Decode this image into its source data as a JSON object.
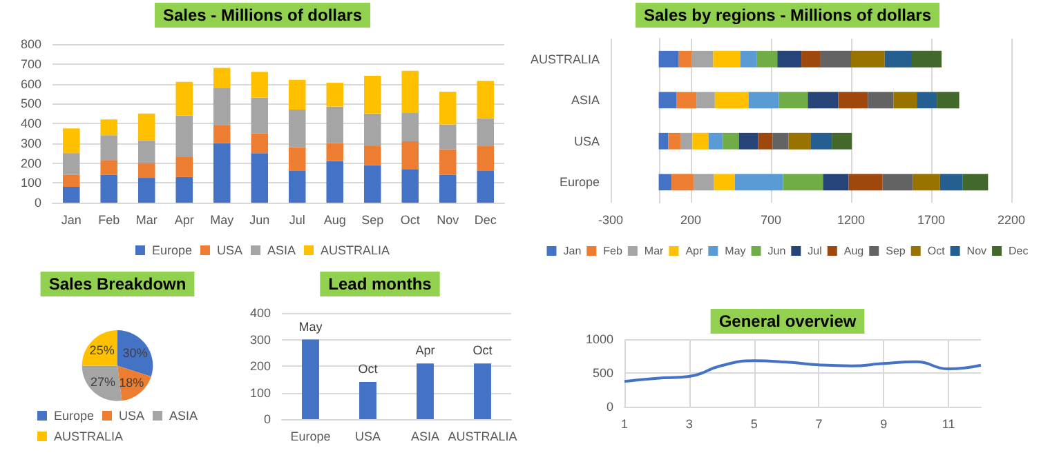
{
  "chart_data": [
    {
      "type": "bar",
      "title": "Sales - Millions of dollars",
      "categories": [
        "Jan",
        "Feb",
        "Mar",
        "Apr",
        "May",
        "Jun",
        "Jul",
        "Aug",
        "Sep",
        "Oct",
        "Nov",
        "Dec"
      ],
      "series": [
        {
          "name": "Europe",
          "color": "#4472c4",
          "values": [
            80,
            140,
            125,
            130,
            300,
            250,
            160,
            210,
            190,
            170,
            140,
            160
          ]
        },
        {
          "name": "USA",
          "color": "#ed7d31",
          "values": [
            60,
            75,
            75,
            100,
            90,
            100,
            120,
            90,
            100,
            140,
            130,
            125
          ]
        },
        {
          "name": "ASIA",
          "color": "#a5a5a5",
          "values": [
            110,
            125,
            115,
            210,
            190,
            180,
            190,
            185,
            160,
            145,
            125,
            140
          ]
        },
        {
          "name": "AUSTRALIA",
          "color": "#ffc000",
          "values": [
            125,
            80,
            135,
            170,
            100,
            130,
            150,
            120,
            190,
            210,
            165,
            190
          ]
        }
      ],
      "stacked": true,
      "ylim": [
        0,
        800
      ],
      "yticks": [
        0,
        100,
        200,
        300,
        400,
        500,
        600,
        700,
        800
      ],
      "grid": "y",
      "legend": "bottom"
    },
    {
      "type": "bar",
      "orientation": "horizontal",
      "title": "Sales by regions - Millions of dollars",
      "categories": [
        "AUSTRALIA",
        "ASIA",
        "USA",
        "Europe"
      ],
      "series": [
        {
          "name": "Jan",
          "color": "#4472c4",
          "values": [
            125,
            110,
            60,
            80
          ]
        },
        {
          "name": "Feb",
          "color": "#ed7d31",
          "values": [
            80,
            125,
            75,
            140
          ]
        },
        {
          "name": "Mar",
          "color": "#a5a5a5",
          "values": [
            135,
            115,
            75,
            125
          ]
        },
        {
          "name": "Apr",
          "color": "#ffc000",
          "values": [
            170,
            210,
            100,
            130
          ]
        },
        {
          "name": "May",
          "color": "#5b9bd5",
          "values": [
            100,
            190,
            90,
            300
          ]
        },
        {
          "name": "Jun",
          "color": "#70ad47",
          "values": [
            130,
            180,
            100,
            250
          ]
        },
        {
          "name": "Jul",
          "color": "#264478",
          "values": [
            150,
            190,
            120,
            160
          ]
        },
        {
          "name": "Aug",
          "color": "#9e480e",
          "values": [
            120,
            185,
            90,
            210
          ]
        },
        {
          "name": "Sep",
          "color": "#636363",
          "values": [
            190,
            160,
            100,
            190
          ]
        },
        {
          "name": "Oct",
          "color": "#997300",
          "values": [
            210,
            145,
            140,
            170
          ]
        },
        {
          "name": "Nov",
          "color": "#255e91",
          "values": [
            165,
            125,
            130,
            140
          ]
        },
        {
          "name": "Dec",
          "color": "#43682b",
          "values": [
            190,
            140,
            125,
            160
          ]
        }
      ],
      "stacked": true,
      "xlim": [
        -300,
        2200
      ],
      "xticks": [
        -300,
        200,
        700,
        1200,
        1700,
        2200
      ],
      "grid": "x",
      "legend": "bottom"
    },
    {
      "type": "pie",
      "title": "Sales Breakdown",
      "categories": [
        "Europe",
        "USA",
        "ASIA",
        "AUSTRALIA"
      ],
      "values": [
        30,
        18,
        27,
        25
      ],
      "colors": [
        "#4472c4",
        "#ed7d31",
        "#a5a5a5",
        "#ffc000"
      ],
      "value_labels": [
        "30%",
        "18%",
        "27%",
        "25%"
      ],
      "legend": "bottom"
    },
    {
      "type": "bar",
      "title": "Lead months",
      "categories": [
        "Europe",
        "USA",
        "ASIA",
        "AUSTRALIA"
      ],
      "values": [
        300,
        140,
        210,
        210
      ],
      "color": "#4472c4",
      "value_labels": [
        "May",
        "Oct",
        "Apr",
        "Oct"
      ],
      "ylim": [
        0,
        400
      ],
      "yticks": [
        0,
        100,
        200,
        300,
        400
      ],
      "grid": "y"
    },
    {
      "type": "line",
      "title": "General overview",
      "x": [
        1,
        2,
        3,
        4,
        5,
        6,
        7,
        8,
        9,
        10,
        11,
        12
      ],
      "values": [
        375,
        420,
        450,
        610,
        680,
        660,
        620,
        605,
        640,
        665,
        560,
        615
      ],
      "color": "#4472c4",
      "xlim": [
        1,
        12
      ],
      "xticks": [
        1,
        3,
        5,
        7,
        9,
        11
      ],
      "ylim": [
        0,
        1000
      ],
      "yticks": [
        0,
        500,
        1000
      ],
      "grid": true,
      "marker": "none"
    }
  ]
}
